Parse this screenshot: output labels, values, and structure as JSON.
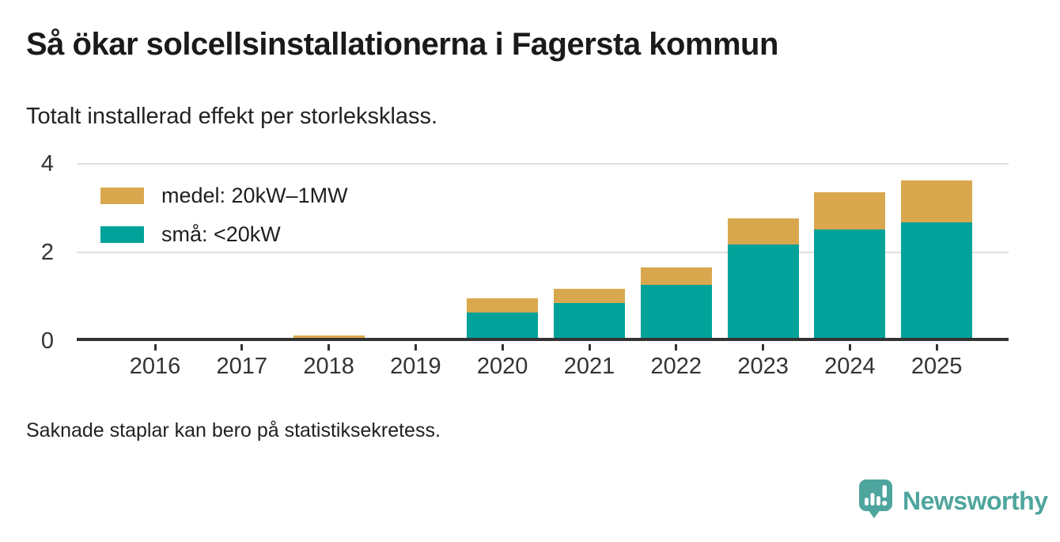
{
  "header": {
    "title": "Så ökar solcellsinstallationerna i Fagersta kommun",
    "subtitle": "Totalt installerad effekt per storleksklass."
  },
  "chart_data": {
    "type": "bar",
    "stacked": true,
    "categories": [
      "2016",
      "2017",
      "2018",
      "2019",
      "2020",
      "2021",
      "2022",
      "2023",
      "2024",
      "2025"
    ],
    "series": [
      {
        "name": "medel: 20kW–1MW",
        "color": "#d9a84e",
        "values": [
          0,
          0,
          0.06,
          0,
          0.32,
          0.32,
          0.4,
          0.58,
          0.84,
          0.94
        ]
      },
      {
        "name": "små: <20kW",
        "color": "#00a29a",
        "values": [
          0,
          0,
          0,
          0,
          0.57,
          0.78,
          1.19,
          2.11,
          2.44,
          2.61
        ]
      }
    ],
    "stack_order_bottom_to_top": [
      "små: <20kW",
      "medel: 20kW–1MW"
    ],
    "title": "Så ökar solcellsinstallationerna i Fagersta kommun",
    "subtitle": "Totalt installerad effekt per storleksklass.",
    "xlabel": "",
    "ylabel": "",
    "ylim": [
      0,
      4
    ],
    "yticks": [
      0,
      2,
      4
    ],
    "grid": "horizontal",
    "legend_position": "top-left-inside"
  },
  "footer": {
    "note": "Saknade staplar kan bero på statistiksekretess.",
    "brand": "Newsworthy"
  },
  "colors": {
    "medel": "#d9a84e",
    "sma": "#00a29a",
    "axis": "#333333",
    "gridline": "#e0e0e0",
    "brand": "#4ea59d",
    "title_text": "#1a1a1a",
    "body_text": "#222222"
  }
}
